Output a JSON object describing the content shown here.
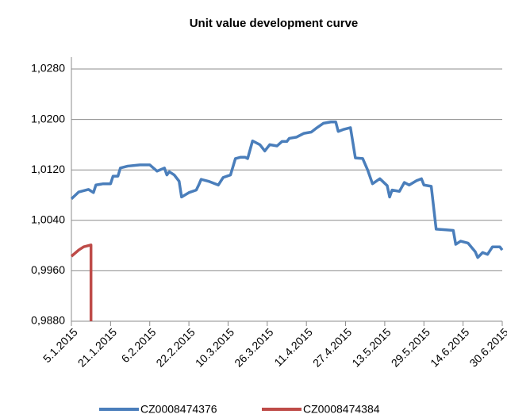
{
  "chart_data": {
    "type": "line",
    "title": "Unit value development curve",
    "xlim": [
      "5.1.2015",
      "30.6.2015"
    ],
    "xticks": [
      "5.1.2015",
      "21.1.2015",
      "6.2.2015",
      "22.2.2015",
      "10.3.2015",
      "26.3.2015",
      "11.4.2015",
      "27.4.2015",
      "13.5.2015",
      "29.5.2015",
      "14.6.2015",
      "30.6.2015"
    ],
    "ylim": [
      0.988,
      1.028
    ],
    "yticks": [
      {
        "value": 0.988,
        "label": "0,9880"
      },
      {
        "value": 0.996,
        "label": "0,9960"
      },
      {
        "value": 1.004,
        "label": "1,0040"
      },
      {
        "value": 1.012,
        "label": "1,0120"
      },
      {
        "value": 1.02,
        "label": "1,0200"
      },
      {
        "value": 1.028,
        "label": "1,0280"
      }
    ],
    "grid": true,
    "legend": "bottom",
    "series": [
      {
        "name": "CZ0008474376",
        "color": "#4a7ebb",
        "x": [
          "5.1.2015",
          "8.1.2015",
          "12.1.2015",
          "14.1.2015",
          "15.1.2015",
          "18.1.2015",
          "21.1.2015",
          "22.1.2015",
          "24.1.2015",
          "25.1.2015",
          "28.1.2015",
          "2.2.2015",
          "6.2.2015",
          "9.2.2015",
          "12.2.2015",
          "13.2.2015",
          "14.2.2015",
          "16.2.2015",
          "18.2.2015",
          "19.2.2015",
          "22.2.2015",
          "25.2.2015",
          "26.2.2015",
          "27.2.2015",
          "2.3.2015",
          "6.3.2015",
          "8.3.2015",
          "11.3.2015",
          "13.3.2015",
          "15.3.2015",
          "17.3.2015",
          "18.3.2015",
          "20.3.2015",
          "23.3.2015",
          "25.3.2015",
          "27.3.2015",
          "30.3.2015",
          "1.4.2015",
          "3.4.2015",
          "4.4.2015",
          "7.4.2015",
          "10.4.2015",
          "13.4.2015",
          "15.4.2015",
          "18.4.2015",
          "21.4.2015",
          "23.4.2015",
          "24.4.2015",
          "26.4.2015",
          "29.4.2015",
          "1.5.2015",
          "4.5.2015",
          "6.5.2015",
          "8.5.2015",
          "11.5.2015",
          "14.5.2015",
          "15.5.2015",
          "16.5.2015",
          "19.5.2015",
          "21.5.2015",
          "23.5.2015",
          "26.5.2015",
          "28.5.2015",
          "29.5.2015",
          "1.6.2015",
          "2.6.2015",
          "3.6.2015",
          "7.6.2015",
          "10.6.2015",
          "11.6.2015",
          "13.6.2015",
          "16.6.2015",
          "19.6.2015",
          "20.6.2015",
          "22.6.2015",
          "24.6.2015",
          "26.6.2015",
          "29.6.2015",
          "30.6.2015"
        ],
        "values": [
          1.0074,
          1.0085,
          1.0089,
          1.0084,
          1.0096,
          1.0098,
          1.0098,
          1.011,
          1.011,
          1.0123,
          1.0126,
          1.0128,
          1.0128,
          1.0118,
          1.0123,
          1.0112,
          1.0117,
          1.0112,
          1.0102,
          1.0077,
          1.0084,
          1.0088,
          1.0096,
          1.0105,
          1.0102,
          1.0096,
          1.0108,
          1.0112,
          1.0138,
          1.014,
          1.014,
          1.0138,
          1.0166,
          1.016,
          1.015,
          1.016,
          1.0158,
          1.0165,
          1.0165,
          1.017,
          1.0172,
          1.0178,
          1.018,
          1.0186,
          1.0194,
          1.0196,
          1.0196,
          1.0181,
          1.0184,
          1.0187,
          1.0139,
          1.0138,
          1.012,
          1.0098,
          1.0106,
          1.0095,
          1.0077,
          1.0088,
          1.0086,
          1.01,
          1.0096,
          1.0103,
          1.0106,
          1.0096,
          1.0094,
          1.006,
          1.0026,
          1.0025,
          1.0024,
          1.0002,
          1.0007,
          1.0004,
          0.999,
          0.9981,
          0.9989,
          0.9986,
          0.9998,
          0.9998,
          0.9993
        ]
      },
      {
        "name": "CZ0008474384",
        "color": "#be4b48",
        "x": [
          "5.1.2015",
          "8.1.2015",
          "10.1.2015",
          "13.1.2015",
          "13.1.2015"
        ],
        "values": [
          0.9983,
          0.9993,
          0.9998,
          1.0001,
          0.988
        ]
      }
    ]
  }
}
